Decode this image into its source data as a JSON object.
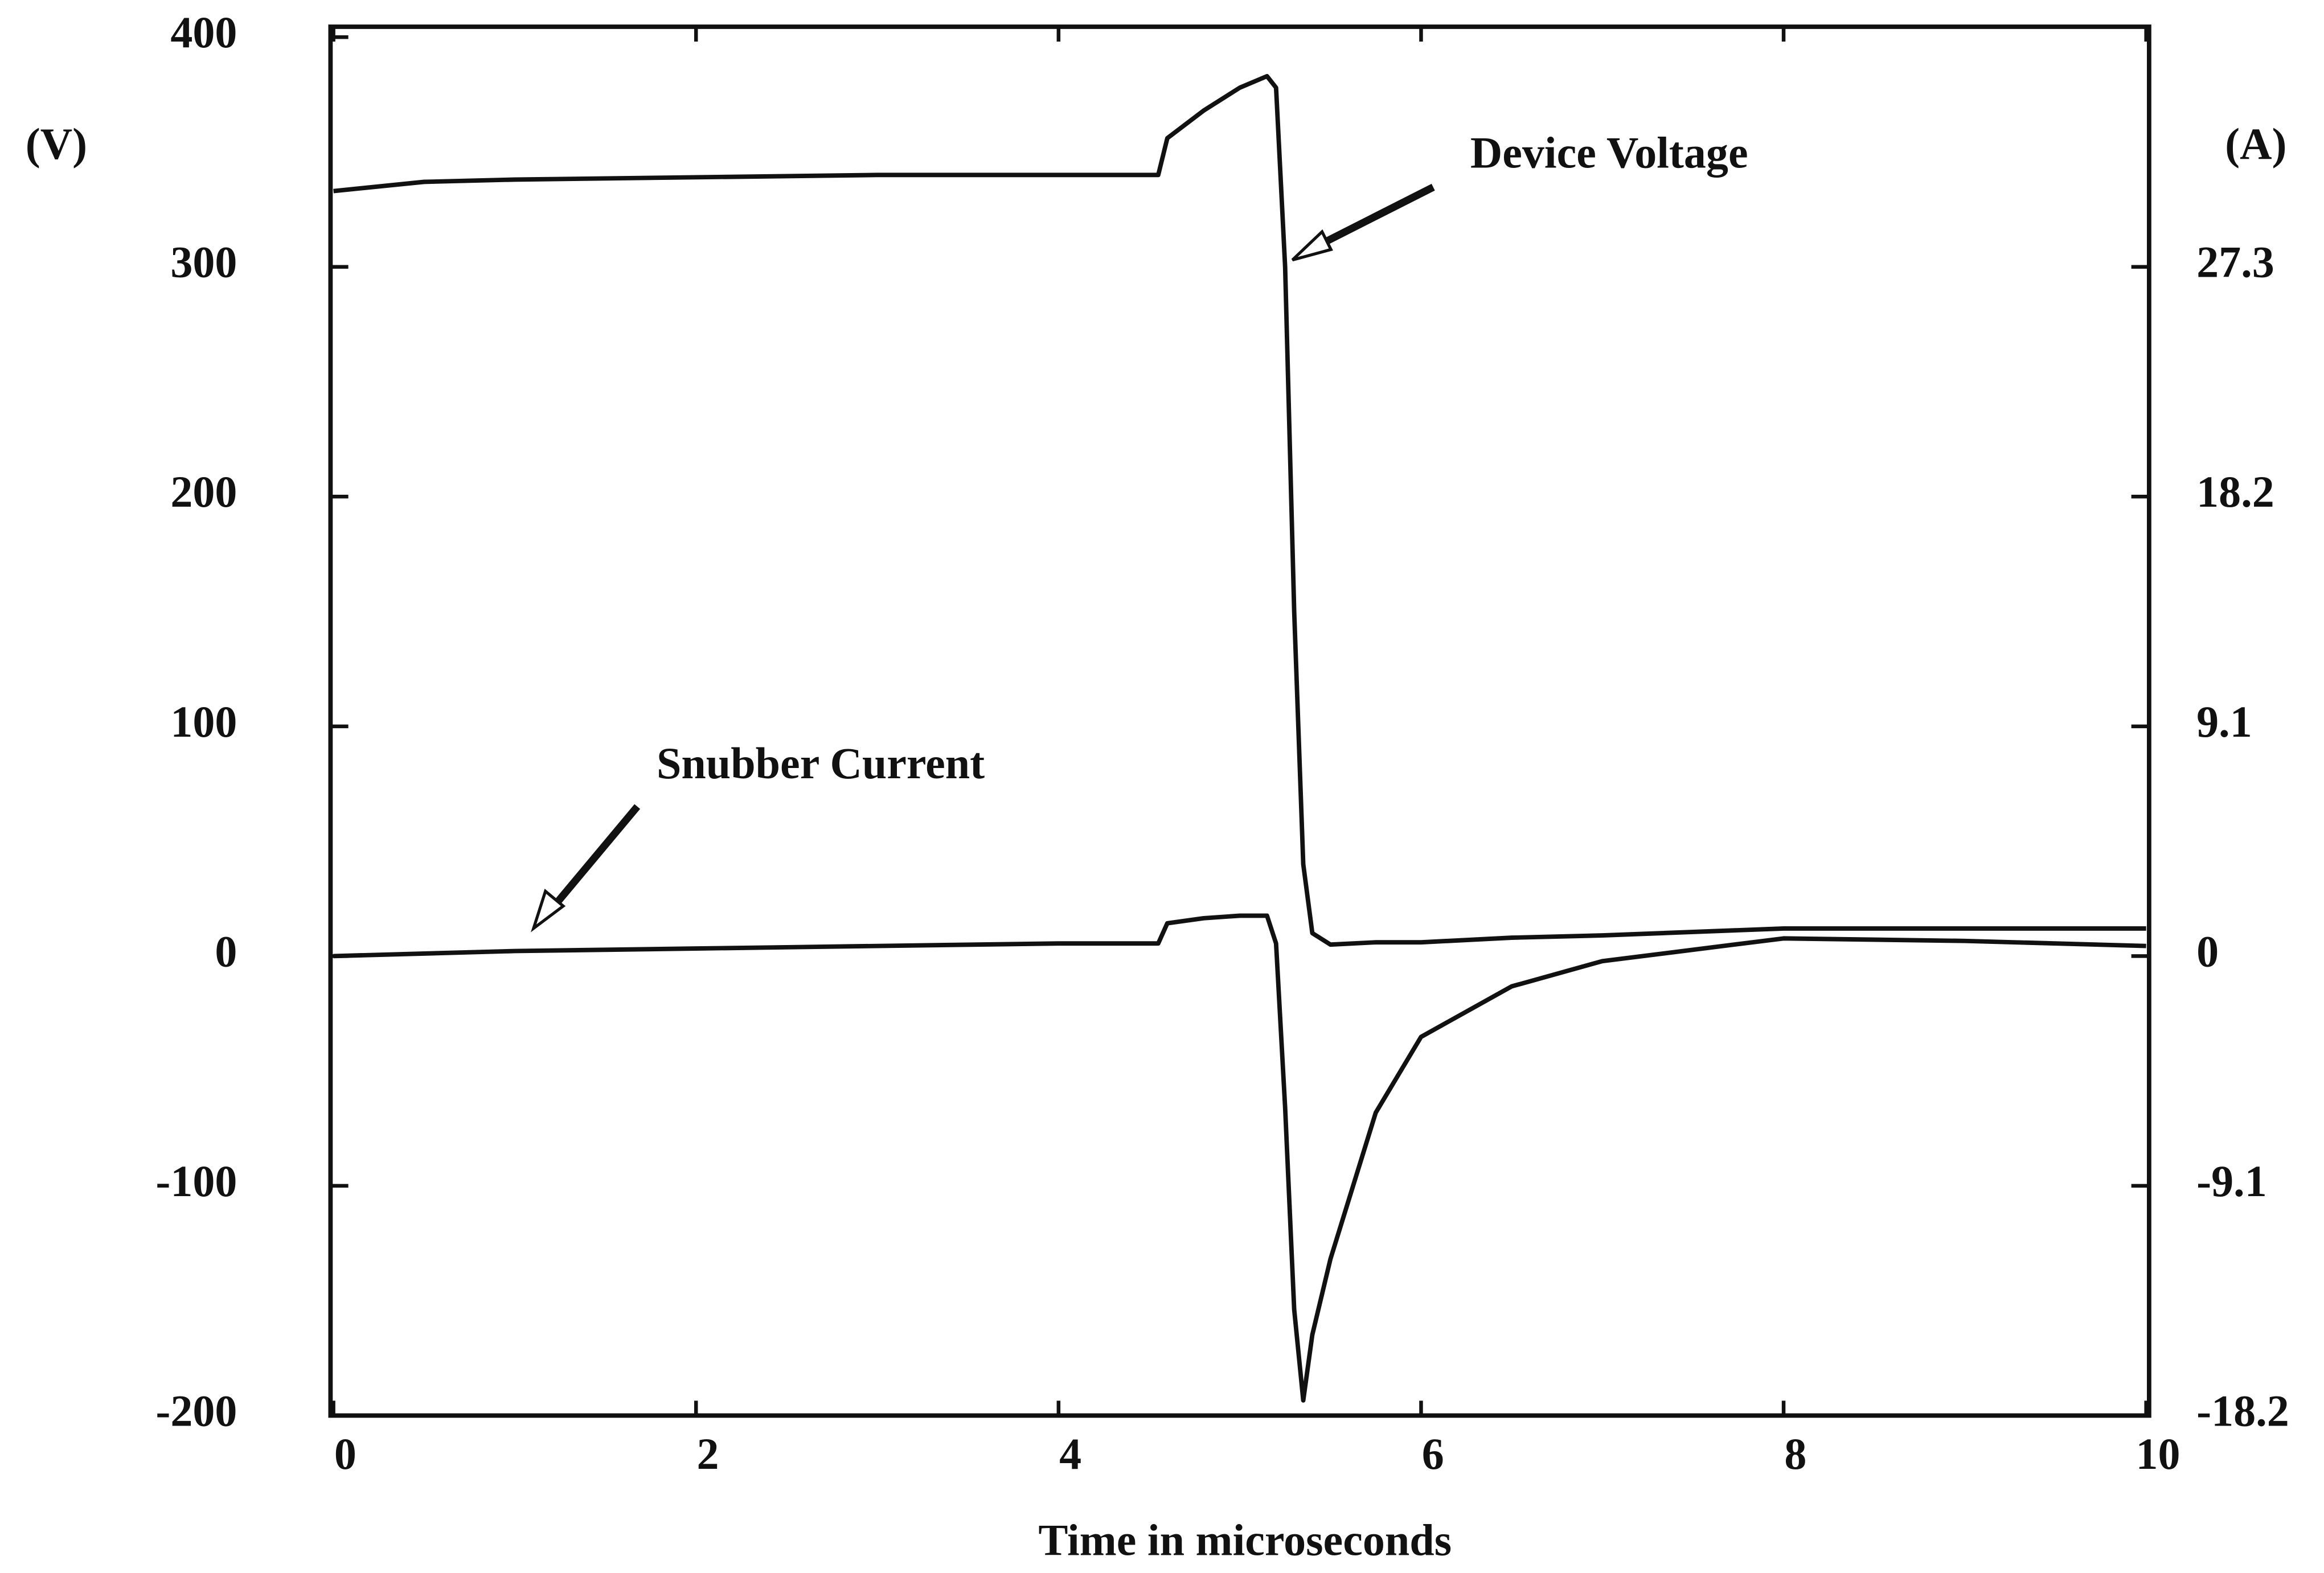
{
  "chart_data": {
    "type": "line",
    "xlabel": "Time in microseconds",
    "ylabel": "(V)",
    "y2label": "(A)",
    "x": [
      0,
      0.5,
      1,
      2,
      3,
      4,
      4.55,
      4.6,
      4.8,
      5,
      5.15,
      5.2,
      5.25,
      5.3,
      5.35,
      5.4,
      5.5,
      5.75,
      6,
      6.5,
      7,
      8,
      9,
      10
    ],
    "series": [
      {
        "name": "Device Voltage",
        "color": "#111111",
        "values": [
          333,
          337,
          338,
          339,
          340,
          340,
          340,
          356,
          368,
          378,
          383,
          378,
          300,
          150,
          40,
          10,
          5,
          6,
          6,
          8,
          9,
          12,
          12,
          12
        ]
      },
      {
        "name": "Snubber Current",
        "color": "#111111",
        "axis": "y2",
        "values": [
          0,
          0.1,
          0.2,
          0.3,
          0.4,
          0.5,
          0.5,
          1.3,
          1.5,
          1.6,
          1.6,
          0.5,
          -6,
          -14,
          -17.6,
          -15,
          -12,
          -6.2,
          -3.2,
          -1.2,
          -0.2,
          0.7,
          0.6,
          0.4
        ]
      }
    ],
    "xlim": [
      0,
      10
    ],
    "xticks": [
      0,
      2,
      4,
      6,
      8,
      10
    ],
    "ylim": [
      -200,
      400
    ],
    "yticks": [
      -200,
      -100,
      0,
      100,
      200,
      300,
      400
    ],
    "y2lim": [
      -18.2,
      36.4
    ],
    "y2ticks": [
      -18.2,
      -9.1,
      0,
      9.1,
      18.2,
      27.3
    ],
    "grid": false
  }
}
